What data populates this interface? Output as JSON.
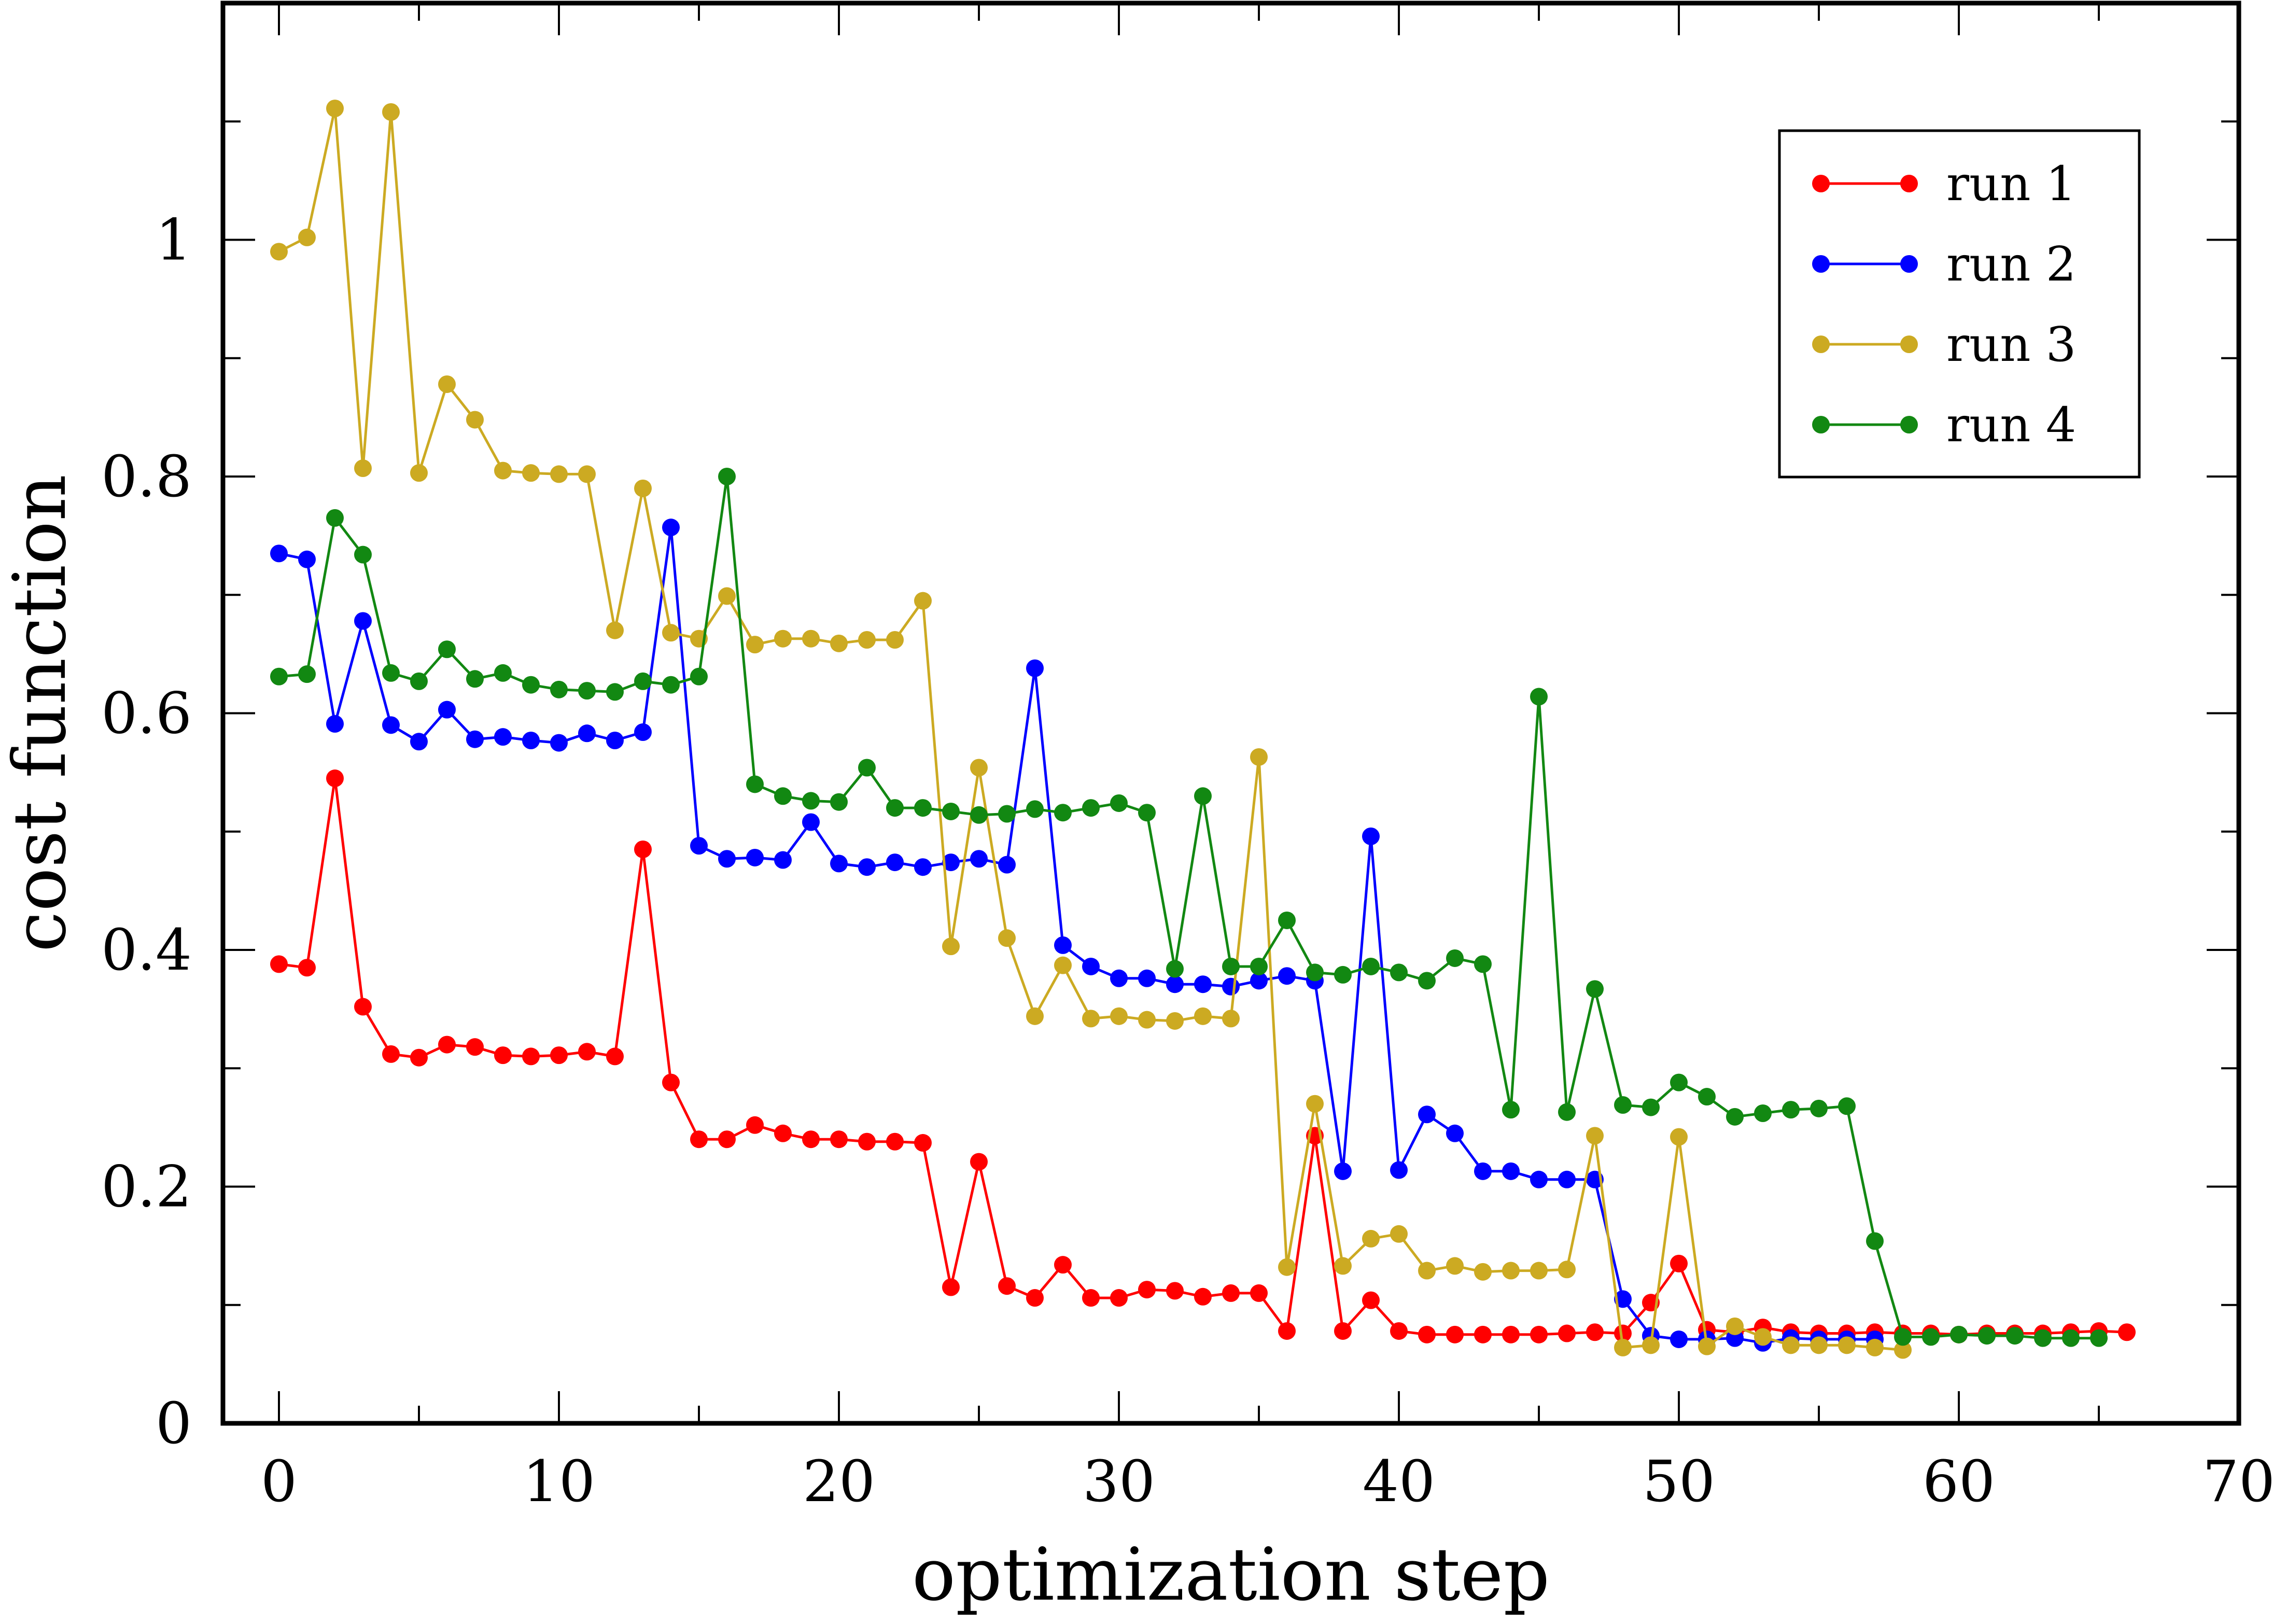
{
  "chart_data": {
    "type": "line",
    "title": "",
    "xlabel": "optimization step",
    "ylabel": "cost function",
    "xlim": [
      -2,
      70
    ],
    "ylim": [
      0,
      1.2
    ],
    "x_ticks": [
      0,
      10,
      20,
      30,
      40,
      50,
      60,
      70
    ],
    "y_ticks": [
      0,
      0.2,
      0.4,
      0.6,
      0.8,
      1
    ],
    "x_tick_labels": [
      "0",
      "10",
      "20",
      "30",
      "40",
      "50",
      "60",
      "70"
    ],
    "y_tick_labels": [
      "0",
      "0.2",
      "0.4",
      "0.6",
      "0.8",
      "1"
    ],
    "grid": false,
    "legend_position": "top-right",
    "series": [
      {
        "name": "run 1",
        "color": "#ff0000",
        "x": [
          0,
          1,
          2,
          3,
          4,
          5,
          6,
          7,
          8,
          9,
          10,
          11,
          12,
          13,
          14,
          15,
          16,
          17,
          18,
          19,
          20,
          21,
          22,
          23,
          24,
          25,
          26,
          27,
          28,
          29,
          30,
          31,
          32,
          33,
          34,
          35,
          36,
          37,
          38,
          39,
          40,
          41,
          42,
          43,
          44,
          45,
          46,
          47,
          48,
          49,
          50,
          51,
          52,
          53,
          54,
          55,
          56,
          57,
          58,
          59,
          60,
          61,
          62,
          63,
          64,
          65,
          66
        ],
        "y": [
          0.388,
          0.385,
          0.545,
          0.352,
          0.312,
          0.309,
          0.32,
          0.318,
          0.311,
          0.31,
          0.311,
          0.314,
          0.31,
          0.485,
          0.288,
          0.24,
          0.24,
          0.252,
          0.245,
          0.24,
          0.24,
          0.238,
          0.238,
          0.237,
          0.115,
          0.221,
          0.116,
          0.106,
          0.134,
          0.106,
          0.106,
          0.113,
          0.112,
          0.107,
          0.11,
          0.11,
          0.078,
          0.243,
          0.078,
          0.104,
          0.078,
          0.075,
          0.075,
          0.075,
          0.075,
          0.075,
          0.076,
          0.077,
          0.076,
          0.102,
          0.135,
          0.079,
          0.077,
          0.081,
          0.077,
          0.076,
          0.076,
          0.077,
          0.076,
          0.076,
          0.075,
          0.076,
          0.076,
          0.076,
          0.077,
          0.078,
          0.077
        ]
      },
      {
        "name": "run 2",
        "color": "#0000ff",
        "x": [
          0,
          1,
          2,
          3,
          4,
          5,
          6,
          7,
          8,
          9,
          10,
          11,
          12,
          13,
          14,
          15,
          16,
          17,
          18,
          19,
          20,
          21,
          22,
          23,
          24,
          25,
          26,
          27,
          28,
          29,
          30,
          31,
          32,
          33,
          34,
          35,
          36,
          37,
          38,
          39,
          40,
          41,
          42,
          43,
          44,
          45,
          46,
          47,
          48,
          49,
          50,
          51,
          52,
          53,
          54,
          55,
          56,
          57
        ],
        "y": [
          0.735,
          0.73,
          0.591,
          0.678,
          0.59,
          0.576,
          0.603,
          0.578,
          0.58,
          0.577,
          0.575,
          0.583,
          0.577,
          0.584,
          0.757,
          0.488,
          0.477,
          0.478,
          0.476,
          0.508,
          0.473,
          0.47,
          0.474,
          0.47,
          0.474,
          0.477,
          0.472,
          0.638,
          0.404,
          0.386,
          0.376,
          0.376,
          0.371,
          0.371,
          0.369,
          0.374,
          0.378,
          0.374,
          0.213,
          0.496,
          0.214,
          0.261,
          0.245,
          0.213,
          0.213,
          0.206,
          0.206,
          0.206,
          0.105,
          0.074,
          0.071,
          0.071,
          0.072,
          0.068,
          0.072,
          0.071,
          0.071,
          0.071
        ]
      },
      {
        "name": "run 3",
        "color": "#ccaa22",
        "x": [
          0,
          1,
          2,
          3,
          4,
          5,
          6,
          7,
          8,
          9,
          10,
          11,
          12,
          13,
          14,
          15,
          16,
          17,
          18,
          19,
          20,
          21,
          22,
          23,
          24,
          25,
          26,
          27,
          28,
          29,
          30,
          31,
          32,
          33,
          34,
          35,
          36,
          37,
          38,
          39,
          40,
          41,
          42,
          43,
          44,
          45,
          46,
          47,
          48,
          49,
          50,
          51,
          52,
          53,
          54,
          55,
          56,
          57,
          58
        ],
        "y": [
          0.99,
          1.002,
          1.111,
          0.807,
          1.108,
          0.803,
          0.878,
          0.848,
          0.805,
          0.803,
          0.802,
          0.802,
          0.67,
          0.79,
          0.668,
          0.663,
          0.699,
          0.658,
          0.663,
          0.663,
          0.659,
          0.662,
          0.662,
          0.695,
          0.403,
          0.554,
          0.41,
          0.344,
          0.387,
          0.342,
          0.344,
          0.341,
          0.34,
          0.344,
          0.342,
          0.563,
          0.132,
          0.27,
          0.133,
          0.156,
          0.16,
          0.129,
          0.133,
          0.128,
          0.129,
          0.129,
          0.13,
          0.243,
          0.064,
          0.066,
          0.242,
          0.065,
          0.082,
          0.073,
          0.066,
          0.066,
          0.066,
          0.064,
          0.062
        ]
      },
      {
        "name": "run 4",
        "color": "#128812",
        "x": [
          0,
          1,
          2,
          3,
          4,
          5,
          6,
          7,
          8,
          9,
          10,
          11,
          12,
          13,
          14,
          15,
          16,
          17,
          18,
          19,
          20,
          21,
          22,
          23,
          24,
          25,
          26,
          27,
          28,
          29,
          30,
          31,
          32,
          33,
          34,
          35,
          36,
          37,
          38,
          39,
          40,
          41,
          42,
          43,
          44,
          45,
          46,
          47,
          48,
          49,
          50,
          51,
          52,
          53,
          54,
          55,
          56,
          57,
          58,
          59,
          60,
          61,
          62,
          63,
          64,
          65
        ],
        "y": [
          0.631,
          0.633,
          0.765,
          0.734,
          0.634,
          0.627,
          0.654,
          0.629,
          0.634,
          0.624,
          0.62,
          0.619,
          0.618,
          0.627,
          0.624,
          0.631,
          0.8,
          0.54,
          0.53,
          0.526,
          0.525,
          0.554,
          0.52,
          0.52,
          0.517,
          0.514,
          0.515,
          0.519,
          0.516,
          0.52,
          0.524,
          0.516,
          0.384,
          0.53,
          0.386,
          0.386,
          0.425,
          0.381,
          0.379,
          0.386,
          0.381,
          0.374,
          0.393,
          0.388,
          0.265,
          0.614,
          0.263,
          0.367,
          0.269,
          0.267,
          0.288,
          0.276,
          0.259,
          0.262,
          0.265,
          0.266,
          0.268,
          0.154,
          0.073,
          0.073,
          0.075,
          0.074,
          0.074,
          0.072,
          0.072,
          0.072
        ]
      }
    ]
  }
}
